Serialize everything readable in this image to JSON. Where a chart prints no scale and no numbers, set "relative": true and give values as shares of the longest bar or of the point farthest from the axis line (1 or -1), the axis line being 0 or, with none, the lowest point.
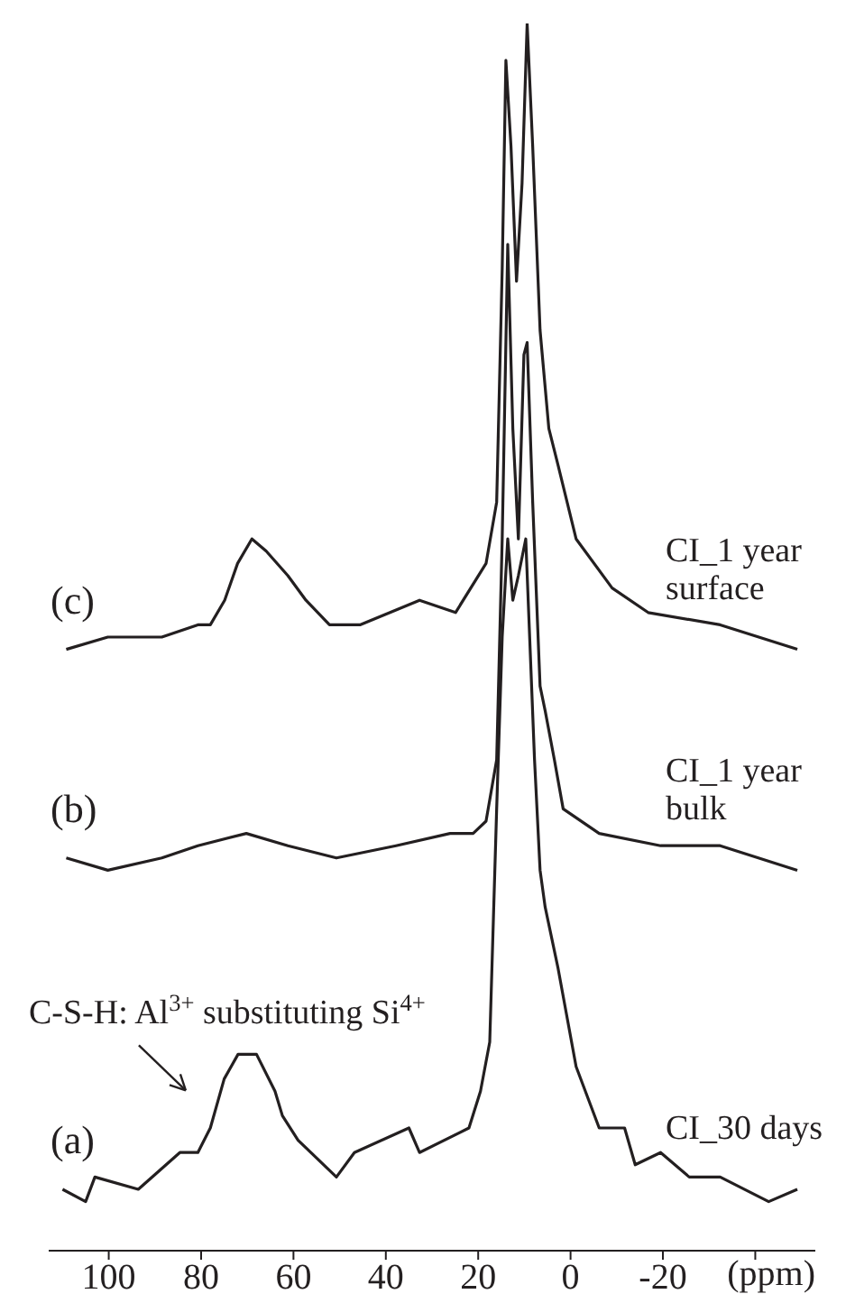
{
  "chart_data": {
    "type": "line",
    "relative": true,
    "xlabel": "(ppm)",
    "xlim": [
      113,
      -53
    ],
    "xticks": [
      100,
      80,
      60,
      40,
      20,
      0,
      -20,
      {
        "value": -40,
        "label": null
      }
    ],
    "tick_labels": "x",
    "marker": "none",
    "line_style": "solid",
    "annotations": [
      "(c)",
      "(b)",
      "(a)",
      "C-S-H: Al$^{3+}$ substituting Si$^{4+}$"
    ],
    "series": [
      {
        "name": "CI_1 year surface",
        "color": "#231f20",
        "x": [
          109.2,
          100.2,
          88.5,
          80.7,
          78,
          74.9,
          72.1,
          69,
          65.9,
          61.2,
          57.3,
          52.2,
          45.6,
          32.7,
          24.9,
          18.3,
          16,
          14.8,
          14,
          12.9,
          11.7,
          10.5,
          9.4,
          8.2,
          6.6,
          4.7,
          2.7,
          -1.2,
          -9,
          -16.8,
          -32.4,
          -49.1
        ],
        "values": [
          0.49,
          0.5,
          0.5,
          0.51,
          0.51,
          0.53,
          0.56,
          0.58,
          0.57,
          0.55,
          0.53,
          0.51,
          0.51,
          0.53,
          0.52,
          0.56,
          0.61,
          0.8,
          0.97,
          0.9,
          0.79,
          0.87,
          1,
          0.9,
          0.75,
          0.67,
          0.64,
          0.58,
          0.54,
          0.52,
          0.51,
          0.49
        ]
      },
      {
        "name": "CI_1 year bulk",
        "color": "#231f20",
        "x": [
          109.2,
          100.2,
          88.5,
          80.7,
          70.2,
          61.2,
          50.7,
          37.8,
          26.1,
          21.1,
          18.3,
          16,
          14.8,
          13.6,
          12.5,
          11.3,
          10.1,
          9.4,
          8.2,
          6.6,
          5.5,
          3.5,
          1.6,
          -6.2,
          -19.5,
          -32.4,
          -49.1
        ],
        "values": [
          0.32,
          0.31,
          0.32,
          0.33,
          0.34,
          0.33,
          0.32,
          0.33,
          0.34,
          0.34,
          0.35,
          0.4,
          0.58,
          0.82,
          0.67,
          0.58,
          0.73,
          0.74,
          0.61,
          0.46,
          0.44,
          0.4,
          0.36,
          0.34,
          0.33,
          0.33,
          0.31
        ]
      },
      {
        "name": "CI_30 days",
        "color": "#231f20",
        "x": [
          110,
          105,
          103,
          93.6,
          84.6,
          80.7,
          78,
          75,
          72,
          68,
          64,
          62.4,
          59,
          50.7,
          46.8,
          35,
          32.7,
          22,
          19.5,
          17.5,
          16,
          14.8,
          13.6,
          12.5,
          11.3,
          9.7,
          7.8,
          6.6,
          5.5,
          2.7,
          -1.2,
          -6.2,
          -11.7,
          -14,
          -19.5,
          -25.7,
          -32.4,
          -42.9,
          -49.1
        ],
        "values": [
          0.05,
          0.04,
          0.06,
          0.05,
          0.08,
          0.08,
          0.1,
          0.14,
          0.16,
          0.16,
          0.13,
          0.11,
          0.09,
          0.06,
          0.08,
          0.1,
          0.08,
          0.1,
          0.13,
          0.17,
          0.36,
          0.5,
          0.58,
          0.53,
          0.55,
          0.58,
          0.4,
          0.31,
          0.28,
          0.23,
          0.15,
          0.1,
          0.1,
          0.07,
          0.08,
          0.06,
          0.06,
          0.04,
          0.05
        ]
      }
    ]
  }
}
